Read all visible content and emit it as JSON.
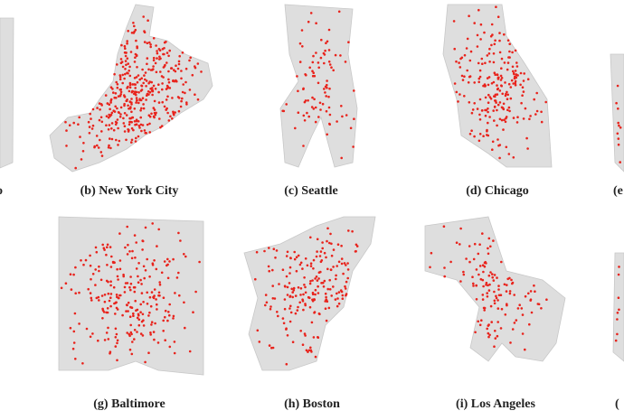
{
  "panels": [
    {
      "caption": "o"
    },
    {
      "caption": "(b) New York City"
    },
    {
      "caption": "(c) Seattle"
    },
    {
      "caption": "(d) Chicago"
    },
    {
      "caption": "(e"
    },
    {
      "caption": "(g) Baltimore"
    },
    {
      "caption": "(h) Boston"
    },
    {
      "caption": "(i) Los Angeles"
    },
    {
      "caption": "("
    }
  ]
}
